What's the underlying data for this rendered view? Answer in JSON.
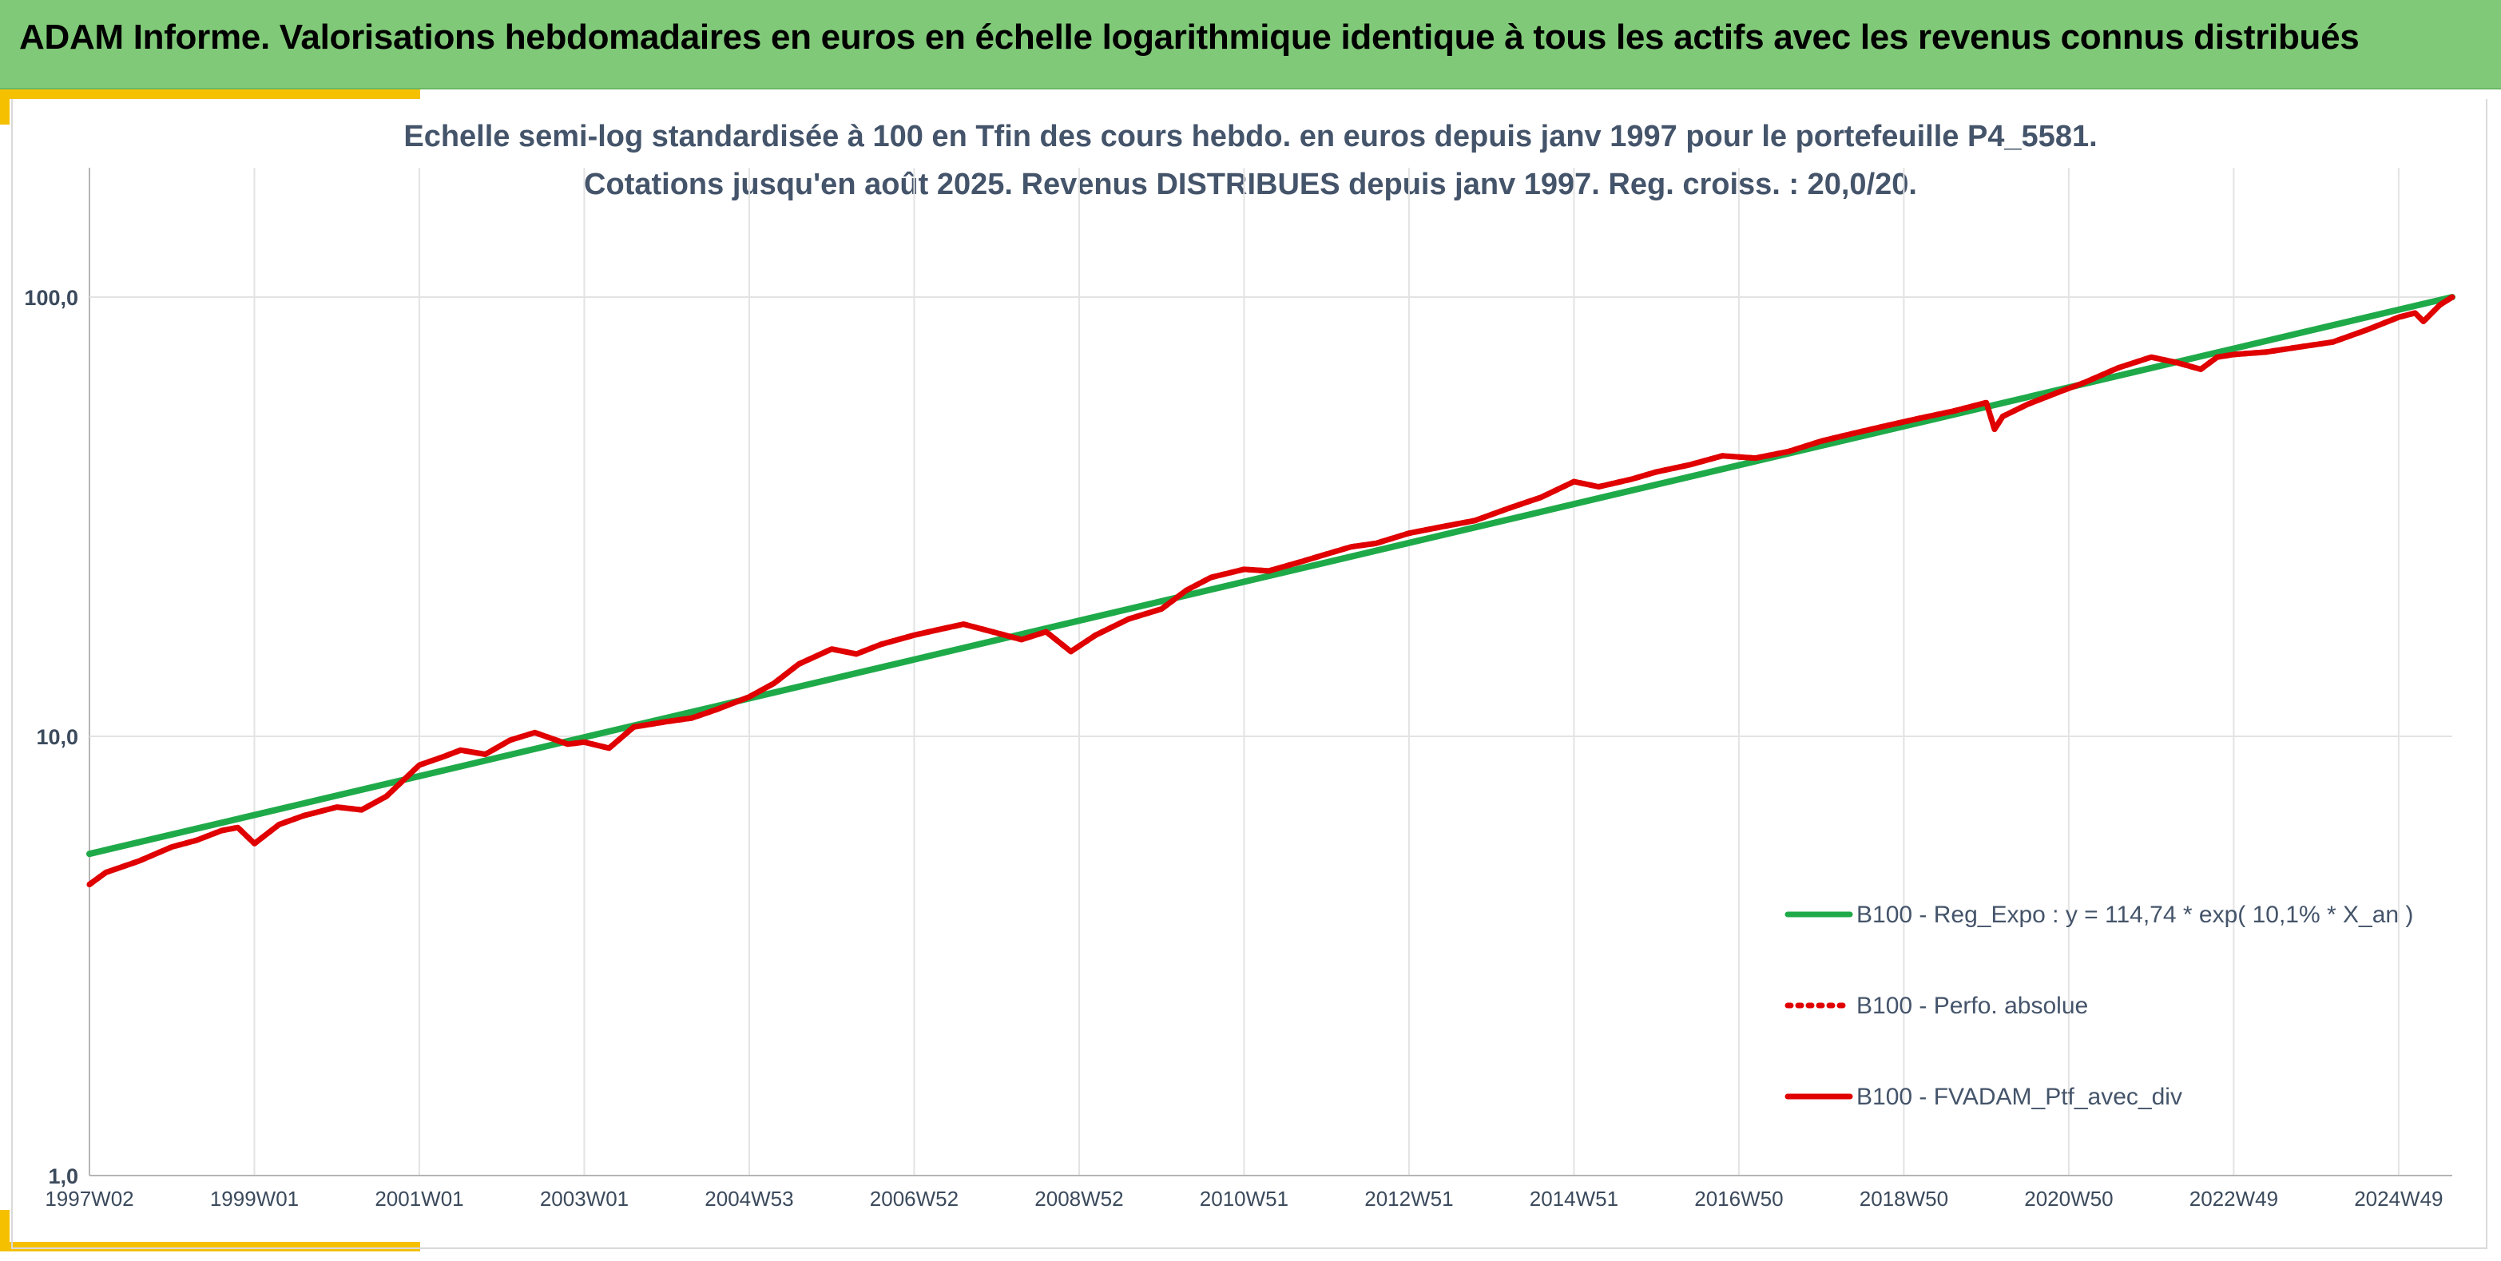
{
  "header": {
    "title": "ADAM Informe. Valorisations hebdomadaires en euros en échelle logarithmique identique à tous les actifs avec les revenus connus distribués"
  },
  "chart_data": {
    "type": "line",
    "title": "Echelle semi-log standardisée à 100 en Tfin des cours hebdo. en euros depuis janv 1997 pour le portefeuille P4_5581.",
    "subtitle": "Cotations jusqu'en août 2025. Revenus DISTRIBUES depuis janv 1997. Reg. croiss. : 20,0/20.",
    "xlabel": "",
    "ylabel": "",
    "y_scale": "log",
    "ylim": [
      1,
      100
    ],
    "xlim": [
      1997.0,
      2025.65
    ],
    "y_ticks": [
      {
        "value": 1,
        "label": "1,0"
      },
      {
        "value": 10,
        "label": "10,0"
      },
      {
        "value": 100,
        "label": "100,0"
      }
    ],
    "x_ticks": [
      {
        "value": 1997.02,
        "label": "1997W02"
      },
      {
        "value": 1999.0,
        "label": "1999W01"
      },
      {
        "value": 2001.0,
        "label": "2001W01"
      },
      {
        "value": 2003.0,
        "label": "2003W01"
      },
      {
        "value": 2005.0,
        "label": "2004W53"
      },
      {
        "value": 2007.0,
        "label": "2006W52"
      },
      {
        "value": 2009.0,
        "label": "2008W52"
      },
      {
        "value": 2011.0,
        "label": "2010W51"
      },
      {
        "value": 2013.0,
        "label": "2012W51"
      },
      {
        "value": 2015.0,
        "label": "2014W51"
      },
      {
        "value": 2017.0,
        "label": "2016W50"
      },
      {
        "value": 2019.0,
        "label": "2018W50"
      },
      {
        "value": 2021.0,
        "label": "2020W50"
      },
      {
        "value": 2023.0,
        "label": "2022W49"
      },
      {
        "value": 2025.0,
        "label": "2024W49"
      }
    ],
    "grid": {
      "vertical": true,
      "horizontal": true
    },
    "legend": {
      "placement": "right",
      "entries": [
        {
          "label": "B100 - Reg_Expo : y = 114,74 * exp( 10,1% *  X_an )",
          "color": "#1faa4a",
          "style": "solid"
        },
        {
          "label": "B100 - Perfo. absolue",
          "color": "#e00000",
          "style": "dotted"
        },
        {
          "label": "B100 - FVADAM_Ptf_avec_div",
          "color": "#e00000",
          "style": "solid"
        }
      ]
    },
    "series": [
      {
        "name": "B100 - Reg_Expo : y = 114,74 * exp( 10,1% *  X_an )",
        "color": "#1faa4a",
        "x": [
          1997.0,
          2025.65
        ],
        "y": [
          5.4,
          100.0
        ]
      },
      {
        "name": "B100 - Perfo. absolue",
        "color": "#e00000",
        "x": [
          1997.0,
          1997.2,
          1997.6,
          1998.0,
          1998.3,
          1998.6,
          1998.8,
          1999.0,
          1999.3,
          1999.6,
          2000.0,
          2000.3,
          2000.6,
          2001.0,
          2001.3,
          2001.5,
          2001.8,
          2002.1,
          2002.4,
          2002.8,
          2003.0,
          2003.3,
          2003.6,
          2004.0,
          2004.3,
          2004.6,
          2005.0,
          2005.3,
          2005.6,
          2006.0,
          2006.3,
          2006.6,
          2007.0,
          2007.3,
          2007.6,
          2008.0,
          2008.3,
          2008.6,
          2008.9,
          2009.2,
          2009.6,
          2010.0,
          2010.3,
          2010.6,
          2011.0,
          2011.3,
          2011.7,
          2012.0,
          2012.3,
          2012.6,
          2013.0,
          2013.4,
          2013.8,
          2014.2,
          2014.6,
          2015.0,
          2015.3,
          2015.7,
          2016.0,
          2016.4,
          2016.8,
          2017.2,
          2017.6,
          2018.0,
          2018.4,
          2018.8,
          2019.2,
          2019.6,
          2020.0,
          2020.1,
          2020.2,
          2020.5,
          2020.9,
          2021.2,
          2021.6,
          2022.0,
          2022.3,
          2022.6,
          2022.8,
          2023.0,
          2023.4,
          2023.8,
          2024.2,
          2024.6,
          2025.0,
          2025.2,
          2025.3,
          2025.5,
          2025.65
        ],
        "y": [
          4.6,
          4.9,
          5.2,
          5.6,
          5.8,
          6.1,
          6.2,
          5.7,
          6.3,
          6.6,
          6.9,
          6.8,
          7.3,
          8.6,
          9.0,
          9.3,
          9.1,
          9.8,
          10.2,
          9.6,
          9.7,
          9.4,
          10.5,
          10.8,
          11.0,
          11.5,
          12.3,
          13.2,
          14.6,
          15.8,
          15.4,
          16.2,
          17.0,
          17.5,
          18.0,
          17.2,
          16.6,
          17.3,
          15.6,
          17.0,
          18.5,
          19.5,
          21.5,
          23.0,
          24.0,
          23.8,
          25.0,
          26.0,
          27.0,
          27.5,
          29.0,
          30.0,
          31.0,
          33.0,
          35.0,
          38.0,
          37.0,
          38.5,
          40.0,
          41.5,
          43.5,
          43.0,
          44.5,
          47.0,
          49.0,
          51.0,
          53.0,
          55.0,
          57.5,
          50.0,
          53.5,
          57.0,
          61.0,
          64.0,
          69.0,
          73.0,
          71.0,
          68.5,
          73.0,
          74.0,
          75.0,
          77.0,
          79.0,
          84.0,
          90.0,
          92.0,
          88.0,
          96.0,
          100.0
        ]
      },
      {
        "name": "B100 - FVADAM_Ptf_avec_div",
        "color": "#e00000",
        "x": [
          1997.0,
          1997.2,
          1997.6,
          1998.0,
          1998.3,
          1998.6,
          1998.8,
          1999.0,
          1999.3,
          1999.6,
          2000.0,
          2000.3,
          2000.6,
          2001.0,
          2001.3,
          2001.5,
          2001.8,
          2002.1,
          2002.4,
          2002.8,
          2003.0,
          2003.3,
          2003.6,
          2004.0,
          2004.3,
          2004.6,
          2005.0,
          2005.3,
          2005.6,
          2006.0,
          2006.3,
          2006.6,
          2007.0,
          2007.3,
          2007.6,
          2008.0,
          2008.3,
          2008.6,
          2008.9,
          2009.2,
          2009.6,
          2010.0,
          2010.3,
          2010.6,
          2011.0,
          2011.3,
          2011.7,
          2012.0,
          2012.3,
          2012.6,
          2013.0,
          2013.4,
          2013.8,
          2014.2,
          2014.6,
          2015.0,
          2015.3,
          2015.7,
          2016.0,
          2016.4,
          2016.8,
          2017.2,
          2017.6,
          2018.0,
          2018.4,
          2018.8,
          2019.2,
          2019.6,
          2020.0,
          2020.1,
          2020.2,
          2020.5,
          2020.9,
          2021.2,
          2021.6,
          2022.0,
          2022.3,
          2022.6,
          2022.8,
          2023.0,
          2023.4,
          2023.8,
          2024.2,
          2024.6,
          2025.0,
          2025.2,
          2025.3,
          2025.5,
          2025.65
        ],
        "y": [
          4.6,
          4.9,
          5.2,
          5.6,
          5.8,
          6.1,
          6.2,
          5.7,
          6.3,
          6.6,
          6.9,
          6.8,
          7.3,
          8.6,
          9.0,
          9.3,
          9.1,
          9.8,
          10.2,
          9.6,
          9.7,
          9.4,
          10.5,
          10.8,
          11.0,
          11.5,
          12.3,
          13.2,
          14.6,
          15.8,
          15.4,
          16.2,
          17.0,
          17.5,
          18.0,
          17.2,
          16.6,
          17.3,
          15.6,
          17.0,
          18.5,
          19.5,
          21.5,
          23.0,
          24.0,
          23.8,
          25.0,
          26.0,
          27.0,
          27.5,
          29.0,
          30.0,
          31.0,
          33.0,
          35.0,
          38.0,
          37.0,
          38.5,
          40.0,
          41.5,
          43.5,
          43.0,
          44.5,
          47.0,
          49.0,
          51.0,
          53.0,
          55.0,
          57.5,
          50.0,
          53.5,
          57.0,
          61.0,
          64.0,
          69.0,
          73.0,
          71.0,
          68.5,
          73.0,
          74.0,
          75.0,
          77.0,
          79.0,
          84.0,
          90.0,
          92.0,
          88.0,
          96.0,
          100.0
        ]
      }
    ]
  }
}
